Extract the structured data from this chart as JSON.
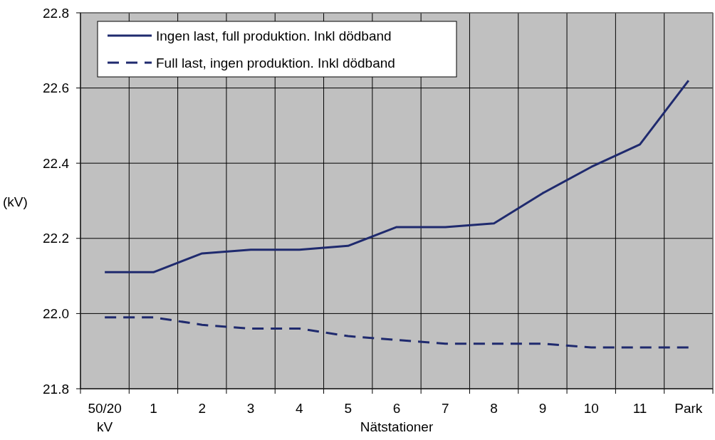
{
  "chart_data": {
    "type": "line",
    "xlabel": "Nätstationer",
    "ylabel": "(kV)",
    "categories": [
      "50/20\nkV",
      "1",
      "2",
      "3",
      "4",
      "5",
      "6",
      "7",
      "8",
      "9",
      "10",
      "11",
      "Park"
    ],
    "series": [
      {
        "name": "Ingen last, full produktion. Inkl dödband",
        "color": "#1f2a6e",
        "line_style": "solid",
        "values": [
          22.11,
          22.11,
          22.16,
          22.17,
          22.17,
          22.18,
          22.23,
          22.23,
          22.24,
          22.32,
          22.39,
          22.45,
          22.62
        ]
      },
      {
        "name": "Full last, ingen produktion. Inkl dödband",
        "color": "#1f2a6e",
        "line_style": "dashed",
        "values": [
          21.99,
          21.99,
          21.97,
          21.96,
          21.96,
          21.94,
          21.93,
          21.92,
          21.92,
          21.92,
          21.91,
          21.91,
          21.91
        ]
      }
    ],
    "ylim": [
      21.8,
      22.8
    ],
    "yticks": [
      {
        "value": 21.8,
        "label": "21.8"
      },
      {
        "value": 22.0,
        "label": "22.0"
      },
      {
        "value": 22.2,
        "label": "22.2"
      },
      {
        "value": 22.4,
        "label": "22.4"
      },
      {
        "value": 22.6,
        "label": "22.6"
      },
      {
        "value": 22.8,
        "label": "22.8"
      }
    ],
    "grid": true,
    "legend": "top left",
    "marker": "none"
  }
}
